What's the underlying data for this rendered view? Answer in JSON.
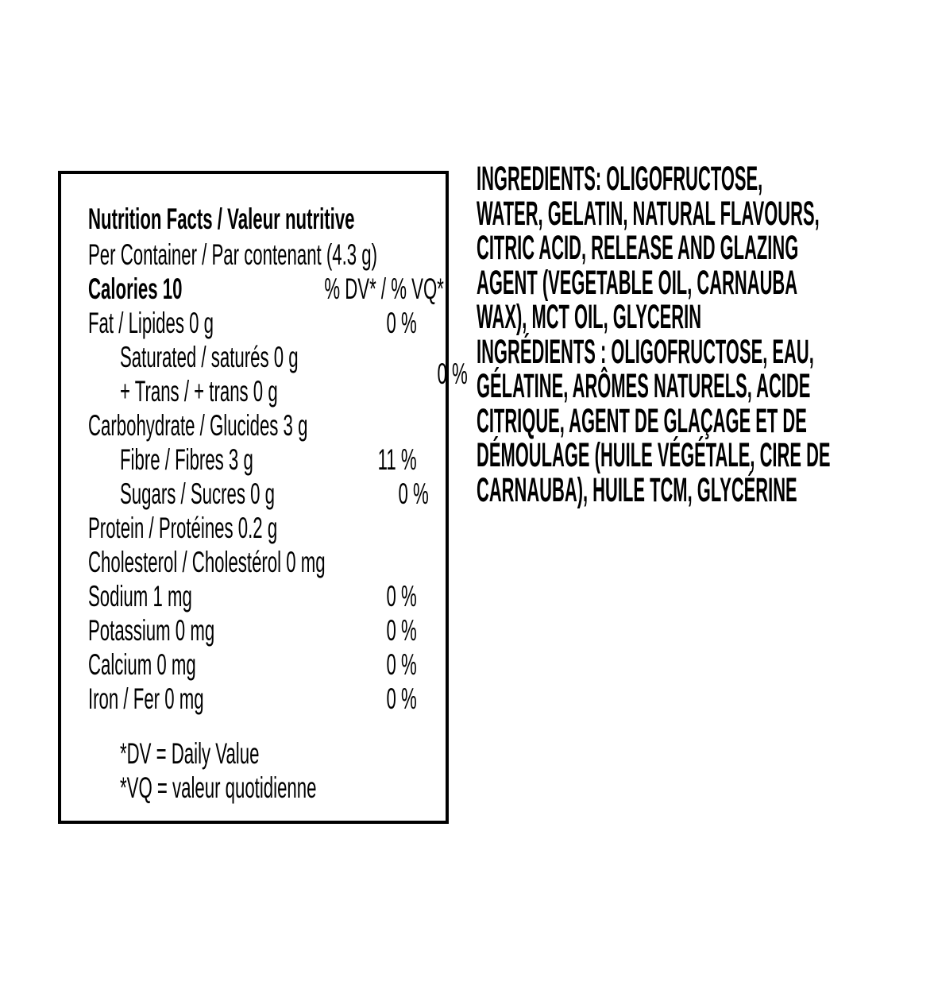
{
  "colors": {
    "ink": "#000000",
    "paper": "#ffffff"
  },
  "nutrition_panel": {
    "title": "Nutrition Facts / Valeur nutritive",
    "serving": "Per Container / Par contenant (4.3 g)",
    "calories": "Calories 10",
    "dv_header": "% DV* / % VQ*",
    "rows": [
      {
        "label": "Fat / Lipides 0 g",
        "value": "0 %"
      },
      {
        "label": "Carbohydrate / Glucides 3 g",
        "value": ""
      },
      {
        "label": "Fibre / Fibres 3 g",
        "value": "11 %"
      },
      {
        "label": "Sugars / Sucres 0 g",
        "value": "0 %"
      },
      {
        "label": "Protein / Protéines 0.2 g",
        "value": ""
      },
      {
        "label": "Cholesterol / Cholestérol 0 mg",
        "value": ""
      },
      {
        "label": "Sodium 1 mg",
        "value": "0 %"
      },
      {
        "label": "Potassium 0 mg",
        "value": "0 %"
      },
      {
        "label": "Calcium 0 mg",
        "value": "0 %"
      },
      {
        "label": "Iron / Fer 0 mg",
        "value": "0 %"
      }
    ],
    "saturated_trans": {
      "line1": "Saturated / saturés 0 g",
      "line2": "+ Trans / + trans 0 g",
      "value": "0 %"
    },
    "footnotes": [
      "*DV = Daily Value",
      "*VQ = valeur quotidienne"
    ]
  },
  "ingredients": {
    "english_lines": [
      "INGREDIENTS: OLIGOFRUCTOSE,",
      "WATER, GELATIN, NATURAL FLAVOURS,",
      "CITRIC ACID, RELEASE AND GLAZING",
      "AGENT (VEGETABLE OIL, CARNAUBA",
      "WAX), MCT OIL, GLYCERIN"
    ],
    "french_lines": [
      "INGRÉDIENTS : OLIGOFRUCTOSE, EAU,",
      "GÉLATINE, ARÔMES NATURELS, ACIDE",
      "CITRIQUE, AGENT DE GLAÇAGE ET DE",
      "DÉMOULAGE (HUILE VÉGÉTALE, CIRE DE",
      "CARNAUBA), HUILE TCM, GLYCÉRINE"
    ]
  }
}
